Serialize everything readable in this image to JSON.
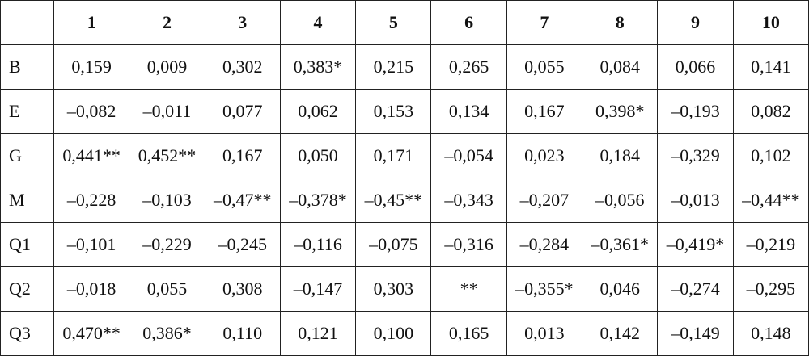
{
  "table": {
    "columns": [
      "1",
      "2",
      "3",
      "4",
      "5",
      "6",
      "7",
      "8",
      "9",
      "10"
    ],
    "rows": [
      {
        "label": "B",
        "cells": [
          "0,159",
          "0,009",
          "0,302",
          "0,383*",
          "0,215",
          "0,265",
          "0,055",
          "0,084",
          "0,066",
          "0,141"
        ]
      },
      {
        "label": "E",
        "cells": [
          "–0,082",
          "–0,011",
          "0,077",
          "0,062",
          "0,153",
          "0,134",
          "0,167",
          "0,398*",
          "–0,193",
          "0,082"
        ]
      },
      {
        "label": "G",
        "cells": [
          "0,441**",
          "0,452**",
          "0,167",
          "0,050",
          "0,171",
          "–0,054",
          "0,023",
          "0,184",
          "–0,329",
          "0,102"
        ]
      },
      {
        "label": "M",
        "cells": [
          "–0,228",
          "–0,103",
          "–0,47**",
          "–0,378*",
          "–0,45**",
          "–0,343",
          "–0,207",
          "–0,056",
          "–0,013",
          "–0,44**"
        ]
      },
      {
        "label": "Q1",
        "cells": [
          "–0,101",
          "–0,229",
          "–0,245",
          "–0,116",
          "–0,075",
          "–0,316",
          "–0,284",
          "–0,361*",
          "–0,419*",
          "–0,219"
        ]
      },
      {
        "label": "Q2",
        "cells": [
          "–0,018",
          "0,055",
          "0,308",
          "–0,147",
          "0,303",
          "**",
          "–0,355*",
          "0,046",
          "–0,274",
          "–0,295"
        ]
      },
      {
        "label": "Q3",
        "cells": [
          "0,470**",
          "0,386*",
          "0,110",
          "0,121",
          "0,100",
          "0,165",
          "0,013",
          "0,142",
          "–0,149",
          "0,148"
        ]
      }
    ]
  }
}
